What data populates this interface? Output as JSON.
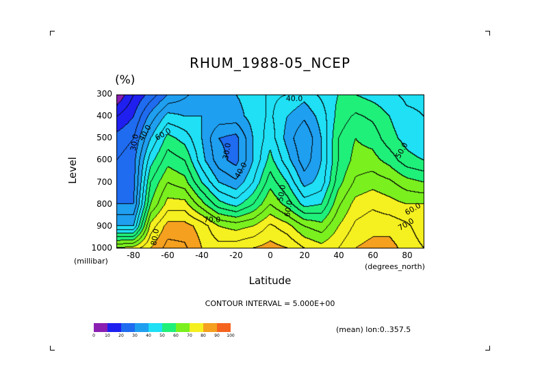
{
  "chart_data": {
    "type": "contour",
    "title": "RHUM_1988-05_NCEP",
    "units": "(%)",
    "ylabel": "Level",
    "y_units": "(millibar)",
    "xlabel": "Latitude",
    "x_units": "(degrees_north)",
    "contour_interval_text": "CONTOUR INTERVAL = 5.000E+00",
    "mean_text": "(mean) lon:0..357.5",
    "xlim": [
      -90,
      90
    ],
    "ylim": [
      1000,
      300
    ],
    "x_ticks": [
      "-80",
      "-60",
      "-40",
      "-20",
      "0",
      "20",
      "40",
      "60",
      "80"
    ],
    "y_ticks": [
      "300",
      "400",
      "500",
      "600",
      "700",
      "800",
      "900",
      "1000"
    ],
    "contour_labels": [
      "30.0",
      "40.0",
      "60.0",
      "30.0",
      "40.0",
      "40.0",
      "50.0",
      "60.0",
      "70.0",
      "50.0",
      "60.0",
      "70.0",
      "80.0"
    ],
    "latitudes": [
      -90,
      -80,
      -70,
      -60,
      -50,
      -40,
      -30,
      -20,
      -10,
      0,
      10,
      20,
      30,
      40,
      50,
      60,
      70,
      80,
      90
    ],
    "levels": [
      1000,
      900,
      800,
      700,
      600,
      500,
      400,
      300
    ],
    "values": [
      [
        70,
        72,
        80,
        87,
        86,
        80,
        77,
        78,
        80,
        82,
        80,
        75,
        72,
        75,
        80,
        82,
        82,
        78,
        75
      ],
      [
        40,
        40,
        72,
        82,
        82,
        78,
        70,
        68,
        70,
        76,
        72,
        65,
        62,
        70,
        76,
        78,
        78,
        76,
        72
      ],
      [
        30,
        30,
        60,
        72,
        72,
        62,
        52,
        48,
        55,
        65,
        58,
        48,
        50,
        64,
        72,
        74,
        72,
        70,
        70
      ],
      [
        28,
        28,
        55,
        65,
        62,
        50,
        40,
        36,
        45,
        58,
        50,
        38,
        42,
        58,
        66,
        68,
        66,
        62,
        60
      ],
      [
        25,
        28,
        48,
        58,
        55,
        42,
        32,
        28,
        40,
        52,
        42,
        32,
        40,
        55,
        62,
        62,
        58,
        52,
        50
      ],
      [
        22,
        25,
        40,
        52,
        48,
        40,
        30,
        28,
        40,
        48,
        38,
        30,
        40,
        55,
        60,
        58,
        52,
        48,
        45
      ],
      [
        15,
        20,
        32,
        42,
        40,
        40,
        38,
        38,
        42,
        46,
        40,
        36,
        42,
        52,
        56,
        54,
        50,
        46,
        45
      ],
      [
        5,
        15,
        22,
        30,
        34,
        38,
        40,
        40,
        42,
        46,
        45,
        42,
        46,
        50,
        50,
        48,
        46,
        44,
        44
      ]
    ],
    "colorbar": {
      "colors": [
        "#8a1fb2",
        "#1f1ff0",
        "#1f6cf0",
        "#1f9ff0",
        "#1fe0f5",
        "#1ff07a",
        "#7af01f",
        "#f5f01f",
        "#f5a01f",
        "#f5641f",
        "#f51f1f"
      ],
      "ticks": [
        "0",
        "10",
        "20",
        "30",
        "40",
        "50",
        "60",
        "70",
        "80",
        "90",
        "100"
      ]
    }
  }
}
